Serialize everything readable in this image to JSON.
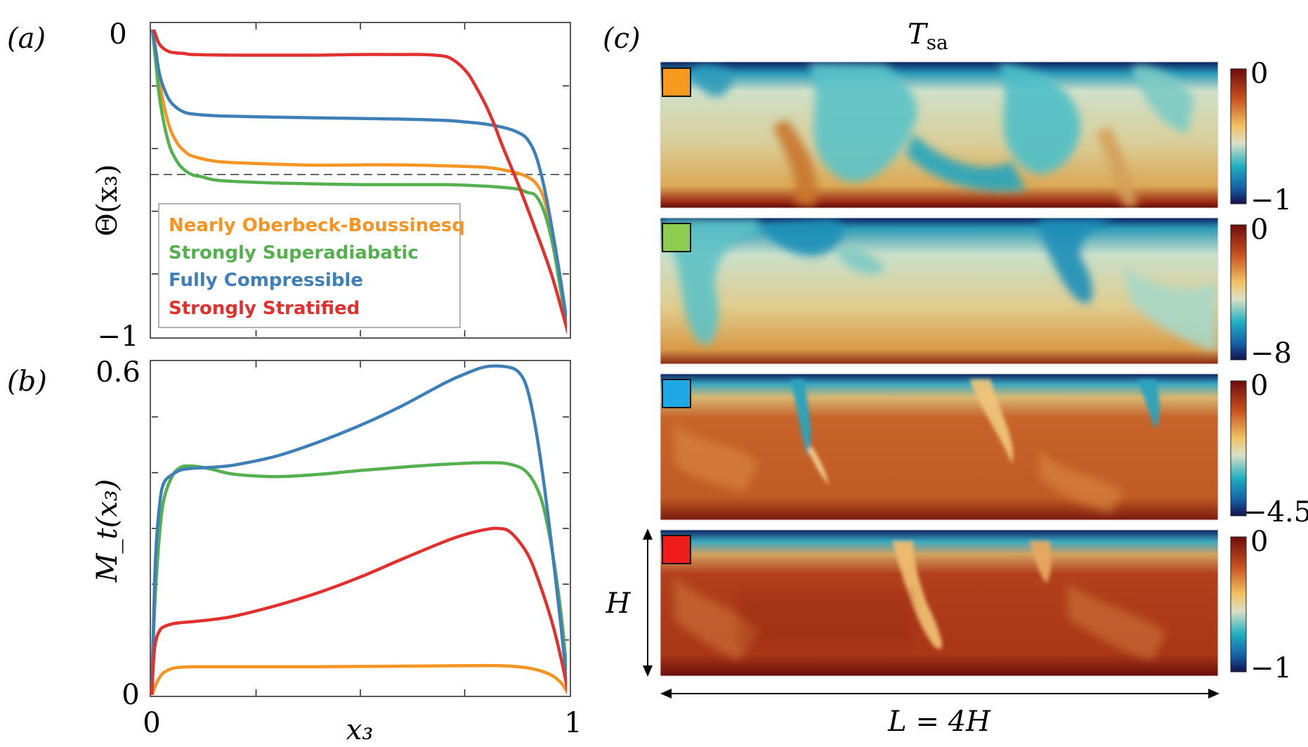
{
  "panels": {
    "a": {
      "label": "(a)"
    },
    "b": {
      "label": "(b)"
    },
    "c": {
      "label": "(c)",
      "title_main": "T",
      "title_sub": "sa",
      "height_label": "H",
      "width_label": "L = 4H"
    }
  },
  "colors": {
    "nob": "#f39423",
    "ssa": "#55b04f",
    "fc": "#3f7fb8",
    "ss": "#e0312f",
    "dashed": "#333333",
    "axis": "#222222"
  },
  "chart_data": [
    {
      "type": "line",
      "panel": "a",
      "ylabel": "Θ(x₃)",
      "xlim": [
        0,
        1
      ],
      "ylim": [
        -1,
        0
      ],
      "yticklabels": [
        "0",
        "−1"
      ],
      "reference_line": -0.483,
      "legend": [
        "Nearly Oberbeck-Boussinesq",
        "Strongly Superadiabatic",
        "Fully Compressible",
        "Strongly Stratified"
      ],
      "legend_position": "lower-left",
      "series": [
        {
          "name": "Nearly Oberbeck-Boussinesq",
          "color_key": "nob",
          "x": [
            0,
            0.01,
            0.02,
            0.04,
            0.06,
            0.08,
            0.1,
            0.15,
            0.2,
            0.3,
            0.4,
            0.5,
            0.6,
            0.7,
            0.8,
            0.85,
            0.88,
            0.9,
            0.92,
            0.94,
            0.96,
            0.98,
            1.0
          ],
          "y": [
            0,
            -0.1,
            -0.2,
            -0.32,
            -0.38,
            -0.41,
            -0.425,
            -0.44,
            -0.445,
            -0.45,
            -0.453,
            -0.452,
            -0.452,
            -0.455,
            -0.46,
            -0.47,
            -0.48,
            -0.49,
            -0.51,
            -0.56,
            -0.68,
            -0.85,
            -1.0
          ]
        },
        {
          "name": "Strongly Superadiabatic",
          "color_key": "ssa",
          "x": [
            0,
            0.01,
            0.02,
            0.04,
            0.06,
            0.08,
            0.1,
            0.12,
            0.15,
            0.2,
            0.3,
            0.5,
            0.7,
            0.8,
            0.85,
            0.88,
            0.9,
            0.92,
            0.94,
            0.96,
            0.98,
            1.0
          ],
          "y": [
            0,
            -0.13,
            -0.25,
            -0.38,
            -0.44,
            -0.47,
            -0.485,
            -0.49,
            -0.5,
            -0.505,
            -0.51,
            -0.515,
            -0.515,
            -0.52,
            -0.525,
            -0.53,
            -0.54,
            -0.55,
            -0.6,
            -0.7,
            -0.85,
            -1.0
          ]
        },
        {
          "name": "Fully Compressible",
          "color_key": "fc",
          "x": [
            0,
            0.01,
            0.02,
            0.04,
            0.06,
            0.08,
            0.1,
            0.15,
            0.2,
            0.3,
            0.4,
            0.5,
            0.6,
            0.7,
            0.75,
            0.8,
            0.85,
            0.88,
            0.9,
            0.92,
            0.94,
            0.96,
            0.98,
            1.0
          ],
          "y": [
            0,
            -0.09,
            -0.17,
            -0.24,
            -0.27,
            -0.285,
            -0.29,
            -0.295,
            -0.297,
            -0.3,
            -0.302,
            -0.304,
            -0.306,
            -0.31,
            -0.315,
            -0.322,
            -0.335,
            -0.35,
            -0.37,
            -0.42,
            -0.52,
            -0.66,
            -0.82,
            -1.0
          ]
        },
        {
          "name": "Strongly Stratified",
          "color_key": "ss",
          "x": [
            0,
            0.01,
            0.02,
            0.04,
            0.06,
            0.08,
            0.1,
            0.2,
            0.3,
            0.4,
            0.5,
            0.6,
            0.65,
            0.7,
            0.72,
            0.74,
            0.76,
            0.78,
            0.8,
            0.82,
            0.84,
            0.88,
            0.92,
            0.96,
            1.0
          ],
          "y": [
            0,
            -0.04,
            -0.07,
            -0.09,
            -0.095,
            -0.097,
            -0.1,
            -0.102,
            -0.102,
            -0.102,
            -0.1,
            -0.1,
            -0.1,
            -0.105,
            -0.115,
            -0.135,
            -0.165,
            -0.21,
            -0.26,
            -0.32,
            -0.39,
            -0.52,
            -0.66,
            -0.81,
            -1.0
          ]
        }
      ]
    },
    {
      "type": "line",
      "panel": "b",
      "ylabel": "M_t(x₃)",
      "xlabel": "x₃",
      "xlim": [
        0,
        1
      ],
      "ylim": [
        0,
        0.6
      ],
      "xticklabels": [
        "0",
        "1"
      ],
      "yticklabels": [
        "0",
        "0.6"
      ],
      "series": [
        {
          "name": "Nearly Oberbeck-Boussinesq",
          "color_key": "nob",
          "x": [
            0,
            0.01,
            0.02,
            0.03,
            0.05,
            0.07,
            0.1,
            0.2,
            0.4,
            0.6,
            0.8,
            0.86,
            0.9,
            0.93,
            0.96,
            0.98,
            0.99,
            1.0
          ],
          "y": [
            0,
            0.02,
            0.034,
            0.042,
            0.049,
            0.051,
            0.052,
            0.052,
            0.052,
            0.053,
            0.054,
            0.053,
            0.05,
            0.045,
            0.036,
            0.024,
            0.014,
            0
          ]
        },
        {
          "name": "Strongly Superadiabatic",
          "color_key": "ssa",
          "x": [
            0,
            0.005,
            0.01,
            0.02,
            0.03,
            0.05,
            0.07,
            0.09,
            0.12,
            0.15,
            0.2,
            0.3,
            0.4,
            0.5,
            0.6,
            0.7,
            0.8,
            0.86,
            0.9,
            0.93,
            0.95,
            0.97,
            0.985,
            1.0
          ],
          "y": [
            0,
            0.12,
            0.2,
            0.3,
            0.355,
            0.395,
            0.41,
            0.412,
            0.41,
            0.405,
            0.397,
            0.393,
            0.397,
            0.404,
            0.41,
            0.415,
            0.418,
            0.415,
            0.4,
            0.36,
            0.3,
            0.21,
            0.12,
            0
          ]
        },
        {
          "name": "Fully Compressible",
          "color_key": "fc",
          "x": [
            0,
            0.005,
            0.01,
            0.02,
            0.03,
            0.05,
            0.07,
            0.1,
            0.15,
            0.2,
            0.3,
            0.4,
            0.5,
            0.6,
            0.7,
            0.75,
            0.8,
            0.85,
            0.88,
            0.9,
            0.92,
            0.94,
            0.96,
            0.98,
            0.99,
            1.0
          ],
          "y": [
            0,
            0.15,
            0.26,
            0.35,
            0.383,
            0.397,
            0.405,
            0.408,
            0.41,
            0.414,
            0.43,
            0.455,
            0.485,
            0.52,
            0.56,
            0.577,
            0.59,
            0.59,
            0.58,
            0.55,
            0.48,
            0.38,
            0.26,
            0.13,
            0.06,
            0
          ]
        },
        {
          "name": "Strongly Stratified",
          "color_key": "ss",
          "x": [
            0,
            0.005,
            0.01,
            0.02,
            0.03,
            0.05,
            0.07,
            0.1,
            0.15,
            0.2,
            0.3,
            0.4,
            0.5,
            0.6,
            0.7,
            0.75,
            0.8,
            0.83,
            0.86,
            0.9,
            0.93,
            0.96,
            0.98,
            1.0
          ],
          "y": [
            0,
            0.07,
            0.1,
            0.118,
            0.124,
            0.129,
            0.131,
            0.133,
            0.137,
            0.143,
            0.162,
            0.185,
            0.213,
            0.245,
            0.276,
            0.289,
            0.298,
            0.3,
            0.293,
            0.255,
            0.2,
            0.13,
            0.07,
            0
          ]
        }
      ]
    },
    {
      "type": "heatmap",
      "panel": "c",
      "title": "T_sa",
      "colorbars": [
        {
          "max_label": "0",
          "min_label": "−1",
          "color_key": "nob"
        },
        {
          "max_label": "0",
          "min_label": "−8",
          "color_key": "ssa"
        },
        {
          "max_label": "0",
          "min_label": "−4.5",
          "color_key": "fc"
        },
        {
          "max_label": "0",
          "min_label": "−1",
          "color_key": "ss"
        }
      ]
    }
  ]
}
